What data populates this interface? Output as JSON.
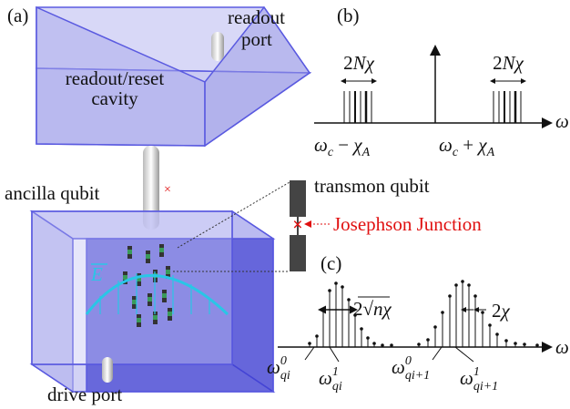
{
  "panels": {
    "a": "(a)",
    "b": "(b)",
    "c": "(c)"
  },
  "cavity_diagram": {
    "readout_port": [
      "readout",
      "port"
    ],
    "cavity": [
      "readout/reset",
      "cavity"
    ],
    "ancilla": "ancilla qubit",
    "field": "E",
    "drive_port": "drive port"
  },
  "qubit": {
    "transmon": "transmon qubit",
    "junction": "Josephson Junction"
  },
  "spectrum_b": {
    "width_label": {
      "pre": "2",
      "n": "N",
      "chi": "χ"
    },
    "axis": "ω",
    "lower": {
      "main": "ω",
      "sub": "c",
      "op": " − ",
      "chi": "χ",
      "sub2": "A"
    },
    "upper": {
      "main": "ω",
      "sub": "c",
      "op": " + ",
      "chi": "χ",
      "sub2": "A"
    }
  },
  "spectrum_c": {
    "spacing_label": {
      "pre": "2",
      "root": "√",
      "n": "n",
      "chi": "χ"
    },
    "split_label": {
      "pre": "2",
      "chi": "χ"
    },
    "axis": "ω",
    "peaks": [
      {
        "main": "ω",
        "sup": "0",
        "sub": "qi"
      },
      {
        "main": "ω",
        "sup": "1",
        "sub": "qi"
      },
      {
        "main": "ω",
        "sup": "0",
        "sub": "qi+1"
      },
      {
        "main": "ω",
        "sup": "1",
        "sub": "qi+1"
      }
    ]
  }
}
